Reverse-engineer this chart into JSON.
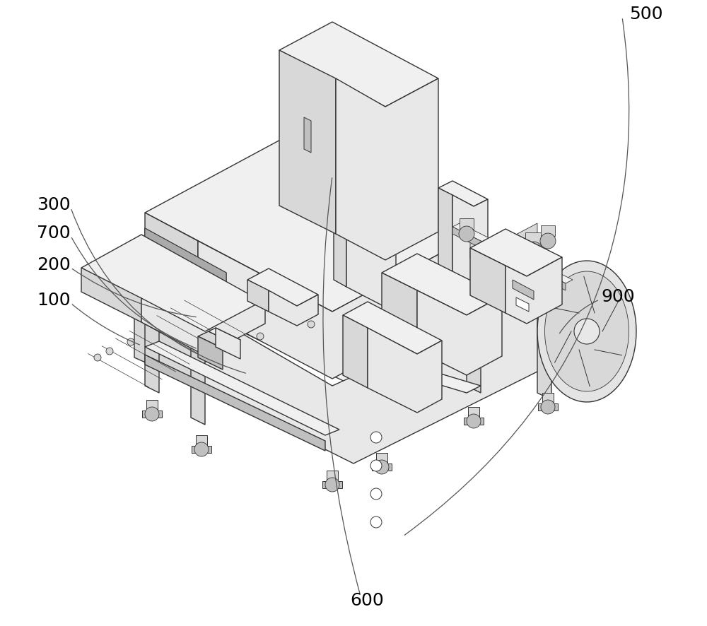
{
  "bg_color": "#ffffff",
  "lc": "#333333",
  "lw": 1.0,
  "lw_thin": 0.6,
  "fc_top": "#f0f0f0",
  "fc_left": "#d8d8d8",
  "fc_right": "#e8e8e8",
  "fc_dark": "#c0c0c0",
  "fc_white": "#ffffff",
  "label_fontsize": 18,
  "leader_color": "#555555",
  "leader_lw": 0.9,
  "figsize": [
    10.0,
    8.87
  ]
}
